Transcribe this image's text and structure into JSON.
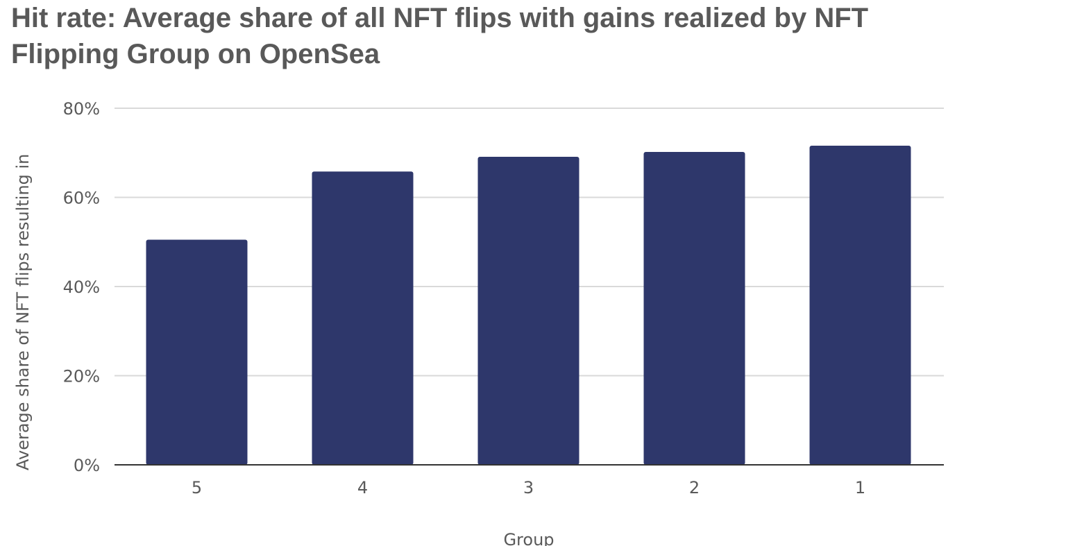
{
  "chart_data": {
    "type": "bar",
    "title": "Hit rate: Average share of all NFT flips with gains realized by NFT Flipping Group on OpenSea",
    "xlabel": "Group",
    "ylabel": "Average share of NFT flips resulting in",
    "categories": [
      "5",
      "4",
      "3",
      "2",
      "1"
    ],
    "values": [
      50.5,
      65.8,
      69.1,
      70.2,
      71.6
    ],
    "ylim": [
      0,
      80
    ],
    "yticks": [
      "0%",
      "20%",
      "40%",
      "60%",
      "80%"
    ],
    "ytick_values": [
      0,
      20,
      40,
      60,
      80
    ],
    "grid": true,
    "bar_color": "#2e376b"
  }
}
